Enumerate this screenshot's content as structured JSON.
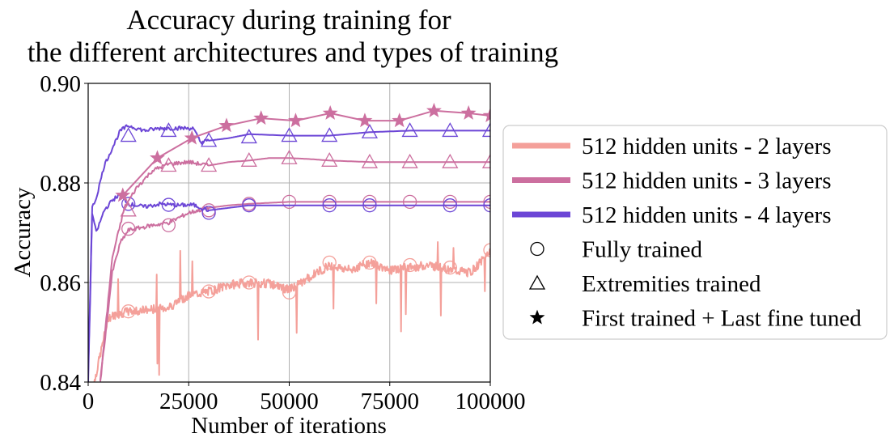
{
  "chart_data": {
    "type": "line",
    "title_lines": [
      "Accuracy during training for",
      "the different architectures and types of training"
    ],
    "xlabel": "Number of iterations",
    "ylabel": "Accuracy",
    "xlim": [
      0,
      100000
    ],
    "ylim": [
      0.84,
      0.9
    ],
    "xticks": [
      0,
      25000,
      50000,
      75000,
      100000
    ],
    "xtick_labels": [
      "0",
      "25000",
      "50000",
      "75000",
      "100000"
    ],
    "yticks": [
      0.84,
      0.86,
      0.88,
      0.9
    ],
    "ytick_labels": [
      "0.84",
      "0.86",
      "0.88",
      "0.90"
    ],
    "grid": true,
    "legend_position": "right",
    "legend": [
      {
        "label": "512 hidden units - 2 layers",
        "kind": "line",
        "color": "#f4a09a"
      },
      {
        "label": "512 hidden units - 3 layers",
        "kind": "line",
        "color": "#cc6f9f"
      },
      {
        "label": "512 hidden units - 4 layers",
        "kind": "line",
        "color": "#6c46d6"
      },
      {
        "label": "Fully trained",
        "kind": "marker",
        "marker": "circle"
      },
      {
        "label": "Extremities trained",
        "kind": "marker",
        "marker": "triangle"
      },
      {
        "label": "First trained + Last fine tuned",
        "kind": "marker",
        "marker": "star"
      }
    ],
    "series": [
      {
        "architecture": "512 hidden units - 2 layers",
        "training": "Fully trained",
        "color": "#f4a09a",
        "marker": "circle",
        "style": "noisy",
        "x": [
          1000,
          5000,
          10000,
          15000,
          20000,
          25000,
          30000,
          35000,
          40000,
          45000,
          50000,
          55000,
          60000,
          65000,
          70000,
          75000,
          80000,
          85000,
          90000,
          95000,
          100000
        ],
        "y": [
          0.838,
          0.853,
          0.8542,
          0.8545,
          0.855,
          0.8575,
          0.8582,
          0.8595,
          0.86,
          0.8598,
          0.8585,
          0.861,
          0.8635,
          0.8625,
          0.864,
          0.8625,
          0.863,
          0.8635,
          0.8625,
          0.862,
          0.866
        ],
        "marker_x": [
          10000,
          30000,
          40000,
          50000,
          60000,
          70000,
          80000,
          90000,
          100000
        ],
        "marker_y": [
          0.8542,
          0.8582,
          0.86,
          0.858,
          0.864,
          0.864,
          0.8635,
          0.863,
          0.8665
        ]
      },
      {
        "architecture": "512 hidden units - 3 layers",
        "training": "Fully trained",
        "color": "#cc6f9f",
        "marker": "circle",
        "style": "smooth",
        "x": [
          3000,
          6000,
          8000,
          10000,
          13000,
          16000,
          20000,
          25000,
          30000,
          35000,
          40000,
          45000,
          50000,
          60000,
          70000,
          80000,
          90000,
          100000
        ],
        "y": [
          0.84,
          0.862,
          0.868,
          0.8705,
          0.871,
          0.8715,
          0.872,
          0.874,
          0.875,
          0.8755,
          0.8758,
          0.876,
          0.8762,
          0.8762,
          0.8762,
          0.8762,
          0.8762,
          0.8762
        ],
        "marker_x": [
          10000,
          20000,
          30000,
          40000,
          50000,
          60000,
          70000,
          80000,
          90000,
          100000
        ],
        "marker_y": [
          0.8708,
          0.8715,
          0.8745,
          0.8758,
          0.8762,
          0.8762,
          0.8762,
          0.8762,
          0.8762,
          0.8762
        ]
      },
      {
        "architecture": "512 hidden units - 4 layers",
        "training": "Fully trained",
        "color": "#6c46d6",
        "marker": "circle",
        "style": "smooth",
        "x": [
          0,
          1000,
          2000,
          4000,
          6000,
          8000,
          10000,
          14000,
          18000,
          22000,
          26000,
          30000,
          40000,
          50000,
          60000,
          70000,
          80000,
          90000,
          100000
        ],
        "y": [
          0.84,
          0.874,
          0.87,
          0.8745,
          0.8765,
          0.8778,
          0.8758,
          0.8752,
          0.8758,
          0.8755,
          0.8756,
          0.8745,
          0.8755,
          0.8755,
          0.8755,
          0.8755,
          0.8755,
          0.8755,
          0.8755
        ],
        "marker_x": [
          10000,
          20000,
          30000,
          40000,
          60000,
          70000,
          90000,
          100000
        ],
        "marker_y": [
          0.8758,
          0.8756,
          0.874,
          0.8755,
          0.8755,
          0.8755,
          0.8755,
          0.8755
        ]
      },
      {
        "architecture": "512 hidden units - 3 layers",
        "training": "Extremities trained",
        "color": "#cc6f9f",
        "marker": "triangle",
        "style": "smooth",
        "x": [
          3000,
          6000,
          9000,
          12000,
          16000,
          20000,
          25000,
          30000,
          35000,
          40000,
          45000,
          50000,
          55000,
          60000,
          70000,
          80000,
          90000,
          100000
        ],
        "y": [
          0.84,
          0.865,
          0.875,
          0.879,
          0.8825,
          0.8838,
          0.8842,
          0.8835,
          0.8842,
          0.8845,
          0.885,
          0.885,
          0.8848,
          0.8845,
          0.8842,
          0.8842,
          0.8842,
          0.8842
        ],
        "marker_x": [
          10000,
          20000,
          30000,
          40000,
          50000,
          60000,
          70000,
          80000,
          90000,
          100000
        ],
        "marker_y": [
          0.8745,
          0.8835,
          0.8835,
          0.8845,
          0.885,
          0.8845,
          0.8842,
          0.8842,
          0.8842,
          0.8842
        ]
      },
      {
        "architecture": "512 hidden units - 4 layers",
        "training": "Extremities trained",
        "color": "#6c46d6",
        "marker": "triangle",
        "style": "smooth",
        "x": [
          0,
          1000,
          2000,
          4000,
          6000,
          8000,
          10000,
          14000,
          18000,
          22000,
          26000,
          28000,
          30000,
          35000,
          40000,
          50000,
          60000,
          70000,
          80000,
          90000,
          100000
        ],
        "y": [
          0.842,
          0.875,
          0.877,
          0.8835,
          0.887,
          0.8905,
          0.8915,
          0.8905,
          0.891,
          0.891,
          0.891,
          0.8882,
          0.8885,
          0.889,
          0.8898,
          0.8895,
          0.8895,
          0.8902,
          0.8905,
          0.8905,
          0.8905
        ],
        "marker_x": [
          10000,
          20000,
          30000,
          40000,
          50000,
          60000,
          70000,
          80000,
          90000,
          100000
        ],
        "marker_y": [
          0.8895,
          0.8905,
          0.8885,
          0.8892,
          0.8895,
          0.8895,
          0.8902,
          0.8905,
          0.8905,
          0.8905
        ]
      },
      {
        "architecture": "512 hidden units - 3 layers",
        "training": "First trained + Last fine tuned",
        "color": "#cc6f9f",
        "marker": "star",
        "style": "line",
        "x": [
          8600,
          17200,
          25800,
          34400,
          43000,
          51600,
          60200,
          68800,
          77400,
          86000,
          94600,
          100000
        ],
        "y": [
          0.8775,
          0.885,
          0.889,
          0.8915,
          0.893,
          0.8925,
          0.894,
          0.8925,
          0.8925,
          0.8945,
          0.894,
          0.8935
        ]
      }
    ]
  }
}
